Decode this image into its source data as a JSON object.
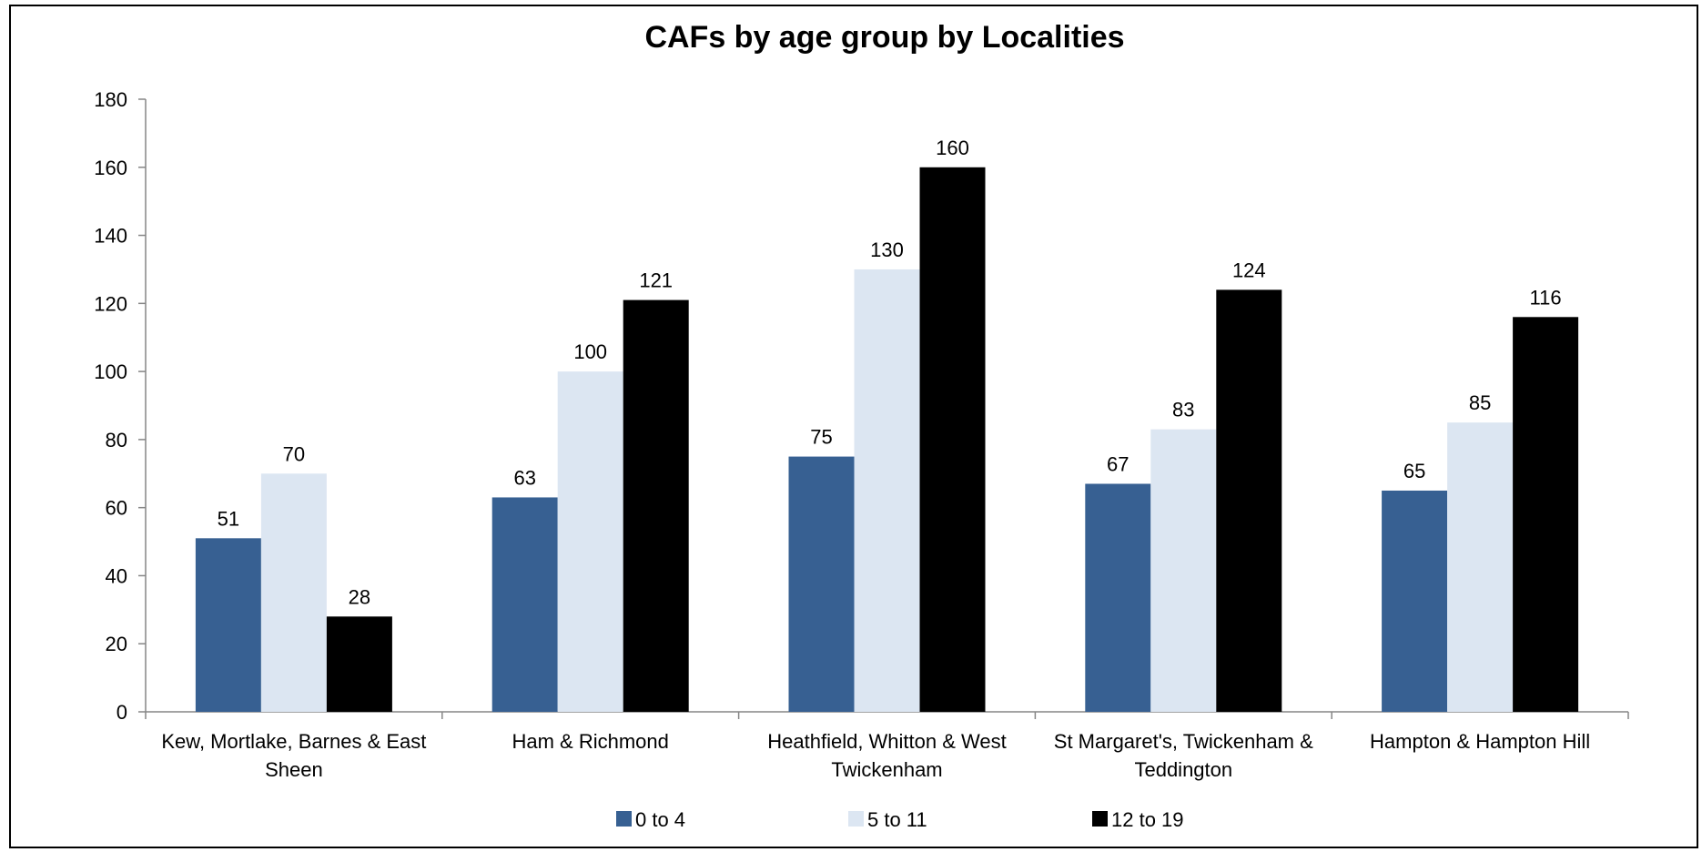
{
  "chart_data": {
    "type": "bar",
    "title": "CAFs by age group by Localities",
    "xlabel": "",
    "ylabel": "",
    "ylim": [
      0,
      180
    ],
    "yticks": [
      0,
      20,
      40,
      60,
      80,
      100,
      120,
      140,
      160,
      180
    ],
    "categories": [
      [
        "Kew, Mortlake, Barnes & East",
        "Sheen"
      ],
      [
        "Ham & Richmond"
      ],
      [
        "Heathfield, Whitton & West",
        "Twickenham"
      ],
      [
        "St Margaret's, Twickenham &",
        "Teddington"
      ],
      [
        "Hampton & Hampton Hill"
      ]
    ],
    "series": [
      {
        "name": "0 to 4",
        "color": "#376092",
        "values": [
          51,
          63,
          75,
          67,
          65
        ]
      },
      {
        "name": "5 to 11",
        "color": "#DCE6F2",
        "values": [
          70,
          100,
          130,
          83,
          85
        ]
      },
      {
        "name": "12 to 19",
        "color": "#000000",
        "values": [
          28,
          121,
          160,
          124,
          116
        ]
      }
    ],
    "data_labels": true,
    "grid": false,
    "legend_position": "bottom"
  }
}
